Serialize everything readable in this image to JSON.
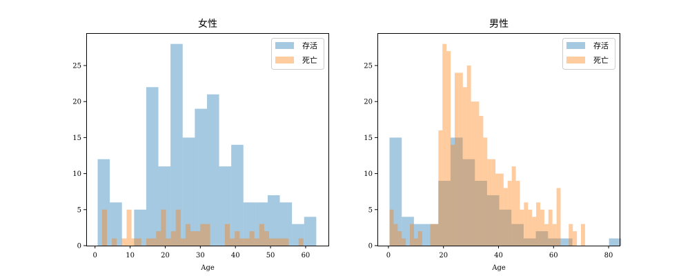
{
  "colors": {
    "survived": "#1f77b4",
    "died": "#ff7f0e",
    "bar_opacity": 0.4
  },
  "chart_data": [
    {
      "type": "histogram",
      "title": "女性",
      "xlabel": "Age",
      "ylabel": "",
      "xlim": [
        -2.5,
        66.5
      ],
      "ylim": [
        0,
        29.5
      ],
      "xticks": [
        0,
        10,
        20,
        30,
        40,
        50,
        60
      ],
      "yticks": [
        0,
        5,
        10,
        15,
        20,
        25
      ],
      "legend_position": "upper-right",
      "series": [
        {
          "name": "存活",
          "color_key": "survived",
          "bin_start": 0.75,
          "bin_width": 3.46,
          "counts": [
            12,
            6,
            0,
            5,
            22,
            11,
            28,
            15,
            19,
            21,
            11,
            14,
            6,
            6,
            7,
            6,
            3,
            4
          ]
        },
        {
          "name": "死亡",
          "color_key": "died",
          "bin_start": 2.0,
          "bin_width": 1.4,
          "counts": [
            5,
            0,
            1,
            0,
            1,
            5,
            1,
            1,
            0,
            1,
            1,
            2,
            5,
            1,
            2,
            5,
            1,
            3,
            2,
            2,
            3,
            3,
            0,
            0,
            0,
            3,
            1,
            2,
            1,
            1,
            2,
            1,
            3,
            2,
            1,
            1,
            1,
            1,
            0,
            0,
            1
          ]
        }
      ]
    },
    {
      "type": "histogram",
      "title": "男性",
      "xlabel": "Age",
      "ylabel": "",
      "xlim": [
        -4,
        84
      ],
      "ylim": [
        0,
        29.5
      ],
      "xticks": [
        0,
        20,
        40,
        60,
        80
      ],
      "yticks": [
        0,
        5,
        10,
        15,
        20,
        25
      ],
      "legend_position": "upper-right",
      "series": [
        {
          "name": "存活",
          "color_key": "survived",
          "bin_start": 0.4,
          "bin_width": 4.43,
          "counts": [
            15,
            4,
            3,
            3,
            9,
            15,
            12,
            9,
            7,
            5,
            3,
            1,
            2,
            1,
            1,
            0,
            0,
            0,
            1
          ]
        },
        {
          "name": "死亡",
          "color_key": "died",
          "bin_start": 0.4,
          "bin_width": 1.48,
          "counts": [
            5,
            3,
            2,
            1,
            0,
            3,
            1,
            2,
            0,
            0,
            3,
            3,
            16,
            28,
            27,
            14,
            24,
            24,
            22,
            25,
            20,
            20,
            18,
            15,
            12,
            12,
            10,
            10,
            8,
            9,
            11,
            9,
            5,
            6,
            5,
            4,
            6,
            5,
            3,
            5,
            3,
            8,
            0,
            0,
            3,
            2,
            0,
            3,
            0,
            0,
            0,
            0,
            0
          ]
        }
      ]
    }
  ]
}
